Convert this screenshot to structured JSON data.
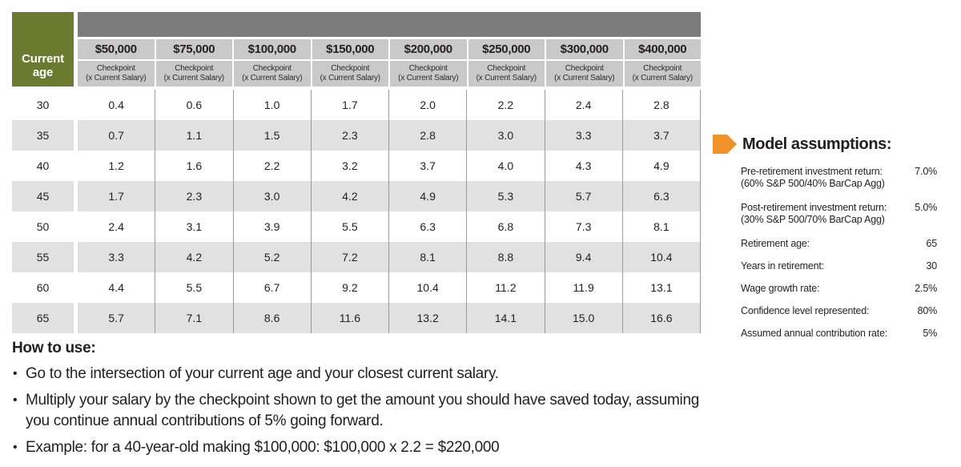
{
  "table": {
    "corner_header": "Current age",
    "salary_columns": [
      "$50,000",
      "$75,000",
      "$100,000",
      "$150,000",
      "$200,000",
      "$250,000",
      "$300,000",
      "$400,000"
    ],
    "sub_header": "Checkpoint",
    "sub_header_note": "(x Current Salary)",
    "rows": [
      {
        "age": "30",
        "values": [
          "0.4",
          "0.6",
          "1.0",
          "1.7",
          "2.0",
          "2.2",
          "2.4",
          "2.8"
        ]
      },
      {
        "age": "35",
        "values": [
          "0.7",
          "1.1",
          "1.5",
          "2.3",
          "2.8",
          "3.0",
          "3.3",
          "3.7"
        ]
      },
      {
        "age": "40",
        "values": [
          "1.2",
          "1.6",
          "2.2",
          "3.2",
          "3.7",
          "4.0",
          "4.3",
          "4.9"
        ]
      },
      {
        "age": "45",
        "values": [
          "1.7",
          "2.3",
          "3.0",
          "4.2",
          "4.9",
          "5.3",
          "5.7",
          "6.3"
        ]
      },
      {
        "age": "50",
        "values": [
          "2.4",
          "3.1",
          "3.9",
          "5.5",
          "6.3",
          "6.8",
          "7.3",
          "8.1"
        ]
      },
      {
        "age": "55",
        "values": [
          "3.3",
          "4.2",
          "5.2",
          "7.2",
          "8.1",
          "8.8",
          "9.4",
          "10.4"
        ]
      },
      {
        "age": "60",
        "values": [
          "4.4",
          "5.5",
          "6.7",
          "9.2",
          "10.4",
          "11.2",
          "11.9",
          "13.1"
        ]
      },
      {
        "age": "65",
        "values": [
          "5.7",
          "7.1",
          "8.6",
          "11.6",
          "13.2",
          "14.1",
          "15.0",
          "16.6"
        ]
      }
    ]
  },
  "assumptions": {
    "heading": "Model assumptions:",
    "icon": "orange-arrow-tag-icon",
    "items": [
      {
        "label": "Pre-retirement investment return:",
        "sublabel": "(60% S&P 500/40% BarCap Agg)",
        "value": "7.0%"
      },
      {
        "label": "Post-retirement investment return:",
        "sublabel": "(30% S&P 500/70% BarCap Agg)",
        "value": "5.0%"
      },
      {
        "label": "Retirement age:",
        "sublabel": "",
        "value": "65"
      },
      {
        "label": "Years in retirement:",
        "sublabel": "",
        "value": "30"
      },
      {
        "label": "Wage growth rate:",
        "sublabel": "",
        "value": "2.5%"
      },
      {
        "label": "Confidence level represented:",
        "sublabel": "",
        "value": "80%"
      },
      {
        "label": "Assumed annual contribution rate:",
        "sublabel": "",
        "value": "5%"
      }
    ]
  },
  "how_to_use": {
    "heading": "How to use:",
    "bullets": [
      "Go to the intersection of your current age and your closest current salary.",
      "Multiply your salary by the checkpoint shown to get the amount you should have saved today, assuming you continue annual contributions of 5% going forward.",
      "Example: for a 40-year-old making $100,000: $100,000 x 2.2 = $220,000"
    ]
  },
  "colors": {
    "header_green": "#6c7a30",
    "header_dark_gray": "#7b7b7b",
    "header_light_gray": "#c9c9c9",
    "row_alt_gray": "#e1e1e1",
    "grid_line_gray": "#9b9b9b",
    "accent_orange": "#f0922a",
    "text": "#231f20"
  }
}
